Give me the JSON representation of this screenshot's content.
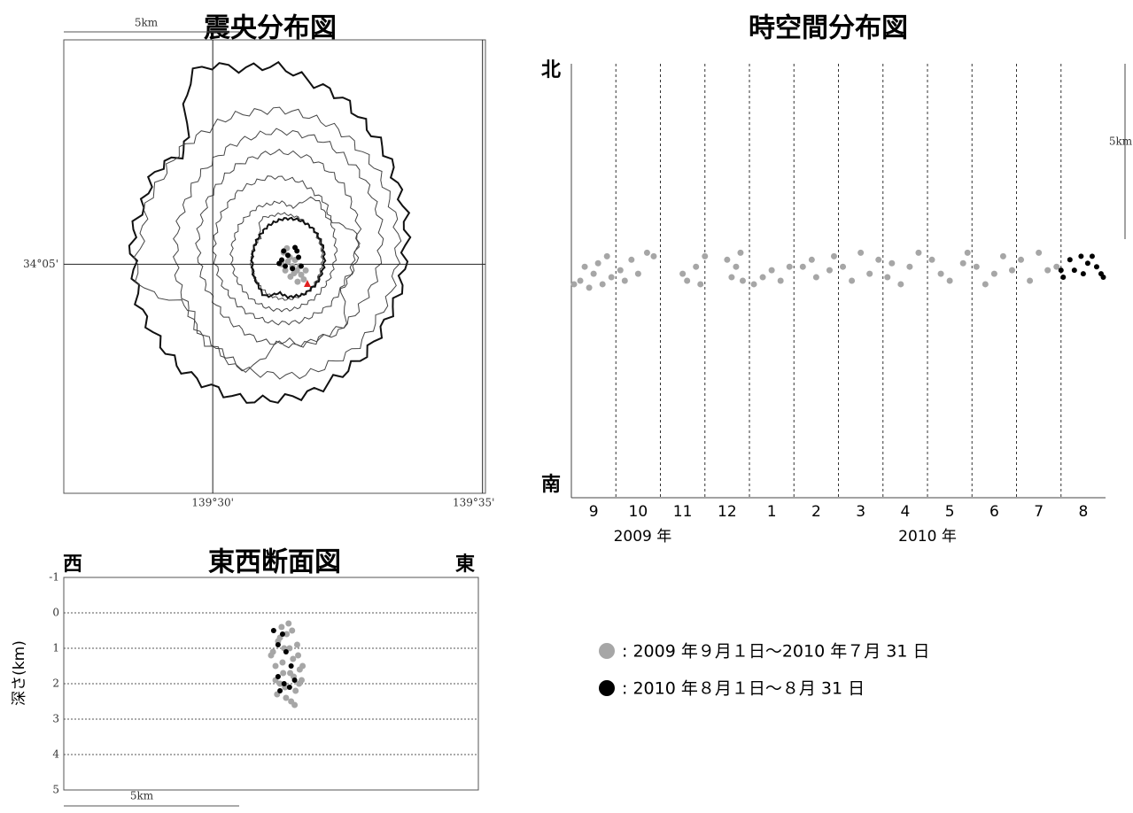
{
  "chart_data": [
    {
      "type": "map",
      "title": "震央分布図",
      "scale_label": "5km",
      "xlim": [
        139.454,
        139.5842
      ],
      "ylim": [
        34.0245,
        34.1409
      ],
      "xticks": [
        {
          "value": 139.5,
          "label": "139°30'"
        },
        {
          "value": 139.5833,
          "label": "139°35'"
        }
      ],
      "yticks": [
        {
          "value": 34.0833,
          "label": "34°05'"
        }
      ],
      "series": [
        {
          "color": "#a6a6a6",
          "x": [
            139.5219,
            139.5232,
            139.5246,
            139.526,
            139.5273,
            139.524,
            139.5224,
            139.5213,
            139.5254,
            139.5268,
            139.5281,
            139.5238,
            139.5251,
            139.5262,
            139.5229,
            139.5287
          ],
          "values": [
            34.0863,
            34.084,
            34.0828,
            34.0817,
            34.0806,
            34.0801,
            34.0817,
            34.0833,
            34.0844,
            34.0828,
            34.0794,
            34.0851,
            34.081,
            34.0788,
            34.0874,
            34.0817
          ]
        },
        {
          "color": "#000000",
          "x": [
            139.5219,
            139.5232,
            139.5254,
            139.5265,
            139.5205,
            139.5224,
            139.5246,
            139.5273,
            139.5213,
            139.526
          ],
          "values": [
            34.0867,
            34.0856,
            34.0876,
            34.0851,
            34.0835,
            34.0828,
            34.0822,
            34.0828,
            34.0844,
            34.0867
          ]
        }
      ]
    },
    {
      "type": "timespace",
      "title": "時空間分布図",
      "north_label": "北",
      "south_label": "南",
      "scale_label": "5km",
      "xlim": [
        0,
        12
      ],
      "ylim": [
        0,
        12.4
      ],
      "xticks": [
        {
          "value": 0.5,
          "label": "9"
        },
        {
          "value": 1.5,
          "label": "10"
        },
        {
          "value": 2.5,
          "label": "11"
        },
        {
          "value": 3.5,
          "label": "12"
        },
        {
          "value": 4.5,
          "label": "1"
        },
        {
          "value": 5.5,
          "label": "2"
        },
        {
          "value": 6.5,
          "label": "3"
        },
        {
          "value": 7.5,
          "label": "4"
        },
        {
          "value": 8.5,
          "label": "5"
        },
        {
          "value": 9.5,
          "label": "6"
        },
        {
          "value": 10.5,
          "label": "7"
        },
        {
          "value": 11.5,
          "label": "8"
        }
      ],
      "grid_x": [
        1,
        2,
        3,
        4,
        5,
        6,
        7,
        8,
        9,
        10,
        11
      ],
      "year_labels": [
        {
          "value": 1.6,
          "label": "2009 年"
        },
        {
          "value": 8,
          "label": "2010 年"
        }
      ],
      "series": [
        {
          "color": "#a6a6a6",
          "x": [
            0.06,
            0.2,
            0.3,
            0.4,
            0.5,
            0.6,
            0.7,
            0.8,
            0.9,
            1.1,
            1.2,
            1.35,
            1.5,
            1.7,
            1.85,
            2.5,
            2.6,
            2.8,
            2.9,
            3.0,
            3.5,
            3.6,
            3.7,
            3.8,
            3.85,
            4.1,
            4.3,
            4.5,
            4.7,
            4.9,
            5.2,
            5.4,
            5.5,
            5.8,
            5.9,
            6.1,
            6.3,
            6.5,
            6.7,
            6.9,
            7.1,
            7.2,
            7.4,
            7.6,
            7.8,
            8.1,
            8.3,
            8.5,
            8.8,
            8.9,
            9.1,
            9.3,
            9.5,
            9.7,
            9.9,
            10.1,
            10.3,
            10.5,
            10.7,
            10.9
          ],
          "values": [
            6.1,
            6.2,
            6.6,
            6.0,
            6.4,
            6.7,
            6.1,
            6.9,
            6.3,
            6.5,
            6.2,
            6.8,
            6.4,
            7.0,
            6.9,
            6.4,
            6.2,
            6.6,
            6.1,
            6.9,
            6.8,
            6.3,
            6.6,
            7.0,
            6.2,
            6.1,
            6.3,
            6.5,
            6.2,
            6.6,
            6.6,
            6.8,
            6.3,
            6.5,
            6.9,
            6.6,
            6.2,
            7.0,
            6.4,
            6.8,
            6.3,
            6.7,
            6.1,
            6.6,
            7.0,
            6.8,
            6.4,
            6.2,
            6.7,
            7.0,
            6.6,
            6.1,
            6.4,
            6.9,
            6.5,
            6.8,
            6.2,
            7.0,
            6.5,
            6.6
          ]
        },
        {
          "color": "#000000",
          "x": [
            11.0,
            11.05,
            11.2,
            11.3,
            11.45,
            11.6,
            11.7,
            11.8,
            11.9,
            11.95,
            11.5
          ],
          "values": [
            6.5,
            6.3,
            6.8,
            6.5,
            6.9,
            6.7,
            6.9,
            6.6,
            6.4,
            6.3,
            6.4
          ]
        }
      ]
    },
    {
      "type": "section",
      "title": "東西断面図",
      "west_label": "西",
      "east_label": "東",
      "ylabel": "深さ(km)",
      "scale_label": "5km",
      "xlim": [
        139.454,
        139.5842
      ],
      "ylim": [
        -1,
        5
      ],
      "yticks": [
        -1,
        0,
        1,
        2,
        3,
        4,
        5
      ],
      "series": [
        {
          "color": "#a6a6a6",
          "x": [
            139.5191,
            139.5205,
            139.5213,
            139.5219,
            139.5224,
            139.5232,
            139.5238,
            139.5246,
            139.5251,
            139.526,
            139.5268,
            139.5273,
            139.5281,
            139.5287,
            139.5197,
            139.521,
            139.5227,
            139.524,
            139.5254,
            139.5262,
            139.5276,
            139.529,
            139.5219,
            139.5235,
            139.5249,
            139.5265,
            139.5279,
            139.5205,
            139.5229,
            139.5257
          ],
          "values": [
            1.2,
            1.5,
            0.8,
            2.0,
            0.4,
            1.0,
            2.4,
            0.3,
            1.7,
            1.3,
            2.2,
            0.9,
            1.6,
            1.9,
            1.1,
            2.3,
            1.4,
            0.6,
            2.5,
            1.8,
            1.2,
            1.5,
            0.7,
            2.1,
            1.0,
            2.6,
            2.0,
            1.9,
            1.7,
            0.5
          ]
        },
        {
          "color": "#000000",
          "x": [
            139.5199,
            139.5227,
            139.5213,
            139.5238,
            139.5254,
            139.5213,
            139.5265,
            139.5232,
            139.5249,
            139.5219
          ],
          "values": [
            0.5,
            0.6,
            0.9,
            1.1,
            1.5,
            1.8,
            1.9,
            2.0,
            2.1,
            2.2
          ]
        }
      ]
    }
  ],
  "legend": [
    {
      "color": "#a6a6a6",
      "label": ": 2009 年９月１日～2010 年７月 31 日"
    },
    {
      "color": "#000000",
      "label": ": 2010 年８月１日～８月 31 日"
    }
  ]
}
